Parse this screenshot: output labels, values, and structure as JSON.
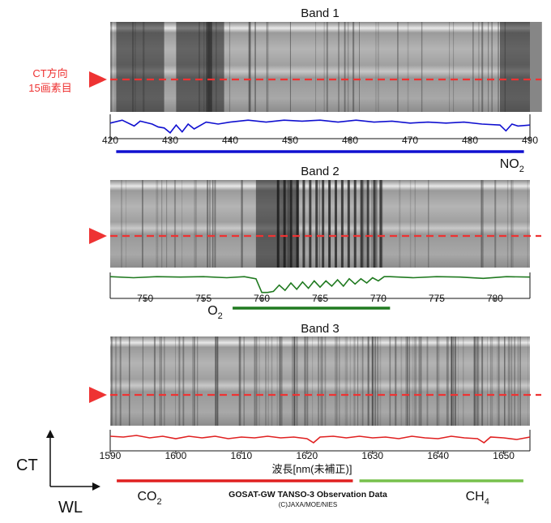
{
  "ct_label": "CT方向",
  "pixel_label": "15画素目",
  "axis_ct": "CT",
  "axis_wl": "WL",
  "xlabel": "波長[nm(未補正)]",
  "credit_title": "GOSAT-GW TANSO-3 Observation Data",
  "credit_org": "(C)JAXA/MOE/NIES",
  "colors": {
    "marker": "#ee3333",
    "band1": "#1010d0",
    "band2": "#207a20",
    "band3": "#e02020",
    "ch4": "#77c04c"
  },
  "chart_data": [
    {
      "type": "line",
      "title": "Band 1",
      "xlim": [
        420,
        490
      ],
      "ticks": [
        420,
        430,
        440,
        450,
        460,
        470,
        480,
        490
      ],
      "species": [
        {
          "base": "NO",
          "sub": "2",
          "range": [
            421,
            489
          ],
          "label_at": 487
        }
      ],
      "series": [
        {
          "x": [
            420,
            422,
            424,
            425,
            427,
            428,
            429,
            430,
            431,
            432,
            433,
            434,
            436,
            438,
            440,
            443,
            446,
            449,
            452,
            455,
            458,
            461,
            464,
            467,
            470,
            473,
            476,
            479,
            482,
            485,
            486,
            487,
            488,
            490
          ],
          "y": [
            0.55,
            0.7,
            0.4,
            0.65,
            0.5,
            0.35,
            0.3,
            0.05,
            0.45,
            0.1,
            0.5,
            0.25,
            0.6,
            0.5,
            0.6,
            0.7,
            0.6,
            0.7,
            0.65,
            0.7,
            0.6,
            0.7,
            0.6,
            0.65,
            0.55,
            0.6,
            0.55,
            0.6,
            0.5,
            0.45,
            0.15,
            0.5,
            0.4,
            0.45
          ]
        }
      ]
    },
    {
      "type": "line",
      "title": "Band 2",
      "xlim": [
        747,
        783
      ],
      "ticks": [
        750,
        755,
        760,
        765,
        770,
        775,
        780
      ],
      "species": [
        {
          "base": "O",
          "sub": "2",
          "range": [
            757.5,
            771
          ],
          "label_at": 756
        }
      ],
      "series": [
        {
          "x": [
            747,
            749,
            751,
            753,
            755,
            757,
            758.5,
            759.5,
            760,
            760.5,
            761,
            761.5,
            762,
            762.5,
            763,
            763.5,
            764,
            764.5,
            765,
            765.5,
            766,
            766.5,
            767,
            767.5,
            768,
            768.5,
            769,
            769.5,
            770,
            770.5,
            771,
            773,
            775,
            777,
            779,
            781,
            783
          ],
          "y": [
            0.8,
            0.75,
            0.8,
            0.78,
            0.8,
            0.75,
            0.8,
            0.7,
            0.05,
            0.05,
            0.1,
            0.4,
            0.15,
            0.5,
            0.2,
            0.55,
            0.25,
            0.6,
            0.3,
            0.6,
            0.35,
            0.65,
            0.35,
            0.7,
            0.45,
            0.7,
            0.5,
            0.75,
            0.6,
            0.8,
            0.8,
            0.75,
            0.8,
            0.78,
            0.72,
            0.8,
            0.78
          ]
        }
      ]
    },
    {
      "type": "line",
      "title": "Band 3",
      "xlim": [
        1590,
        1654
      ],
      "ticks": [
        1590,
        1600,
        1610,
        1620,
        1630,
        1640,
        1650
      ],
      "species": [
        {
          "base": "CO",
          "sub": "2",
          "range": [
            1591,
            1627
          ],
          "label_at": 1596
        },
        {
          "base": "CH",
          "sub": "4",
          "range": [
            1628,
            1653
          ],
          "label_at": 1646
        }
      ],
      "series": [
        {
          "x": [
            1590,
            1592,
            1594,
            1596,
            1598,
            1600,
            1602,
            1604,
            1606,
            1608,
            1610,
            1612,
            1614,
            1616,
            1618,
            1620,
            1621,
            1622,
            1624,
            1626,
            1628,
            1630,
            1632,
            1634,
            1636,
            1638,
            1640,
            1642,
            1644,
            1646,
            1647,
            1648,
            1650,
            1652,
            1654
          ],
          "y": [
            0.6,
            0.55,
            0.65,
            0.5,
            0.6,
            0.45,
            0.6,
            0.5,
            0.6,
            0.45,
            0.55,
            0.5,
            0.6,
            0.5,
            0.55,
            0.45,
            0.2,
            0.55,
            0.6,
            0.5,
            0.6,
            0.5,
            0.55,
            0.45,
            0.6,
            0.5,
            0.45,
            0.6,
            0.5,
            0.45,
            0.2,
            0.55,
            0.5,
            0.4,
            0.55
          ]
        }
      ]
    }
  ]
}
